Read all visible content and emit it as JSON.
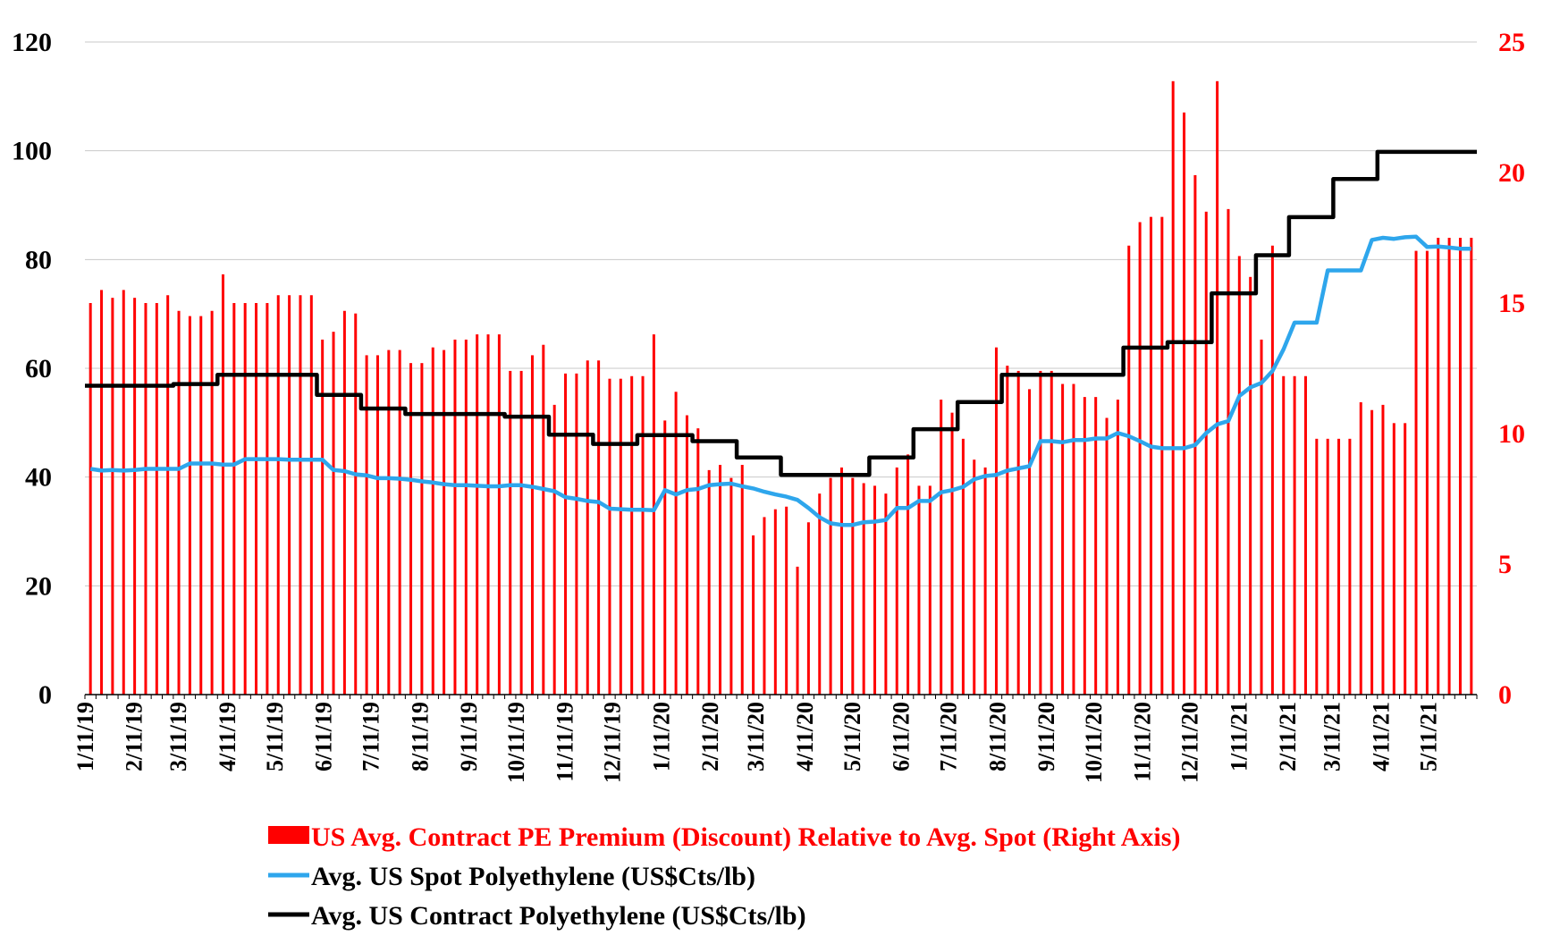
{
  "chart_data": {
    "type": "bar+line",
    "colors": {
      "bars": "#ff0000",
      "spot": "#2ea6ec",
      "contract": "#000000",
      "right_axis": "#ff0000",
      "grid": "#c8c8c8"
    },
    "left_axis": {
      "ylim": [
        0,
        120
      ],
      "ticks": [
        "0",
        "20",
        "40",
        "60",
        "80",
        "100",
        "120"
      ]
    },
    "right_axis": {
      "ylim": [
        0,
        25
      ],
      "ticks": [
        "0",
        "5",
        "10",
        "15",
        "20",
        "25"
      ]
    },
    "x_tick_labels": [
      "1/11/19",
      "2/11/19",
      "3/11/19",
      "4/11/19",
      "5/11/19",
      "6/11/19",
      "7/11/19",
      "8/11/19",
      "9/11/19",
      "10/11/19",
      "11/11/19",
      "12/11/19",
      "1/11/20",
      "2/11/20",
      "3/11/20",
      "4/11/20",
      "5/11/20",
      "6/11/20",
      "7/11/20",
      "8/11/20",
      "9/11/20",
      "10/11/20",
      "11/11/20",
      "12/11/20",
      "1/11/21",
      "2/11/21",
      "3/11/21",
      "4/11/21",
      "5/11/21"
    ],
    "x_tick_weeks": [
      0,
      4.43,
      8.43,
      12.86,
      17.14,
      21.57,
      25.86,
      30.29,
      34.71,
      39,
      43.43,
      47.71,
      52.14,
      56.57,
      60.71,
      65.14,
      69.43,
      73.86,
      78.14,
      82.57,
      87,
      91.29,
      95.71,
      100,
      104.43,
      108.86,
      112.86,
      117.29,
      121.57
    ],
    "weeks_total": 126,
    "legend": [
      {
        "label": "US Avg. Contract PE Premium (Discount) Relative to Avg. Spot (Right Axis)",
        "color": "#ff0000",
        "kind": "bar"
      },
      {
        "label": "Avg. US Spot Polyethylene (US$Cts/lb)",
        "color": "#2ea6ec",
        "kind": "line"
      },
      {
        "label": "Avg. US Contract Polyethylene (US$Cts/lb)",
        "color": "#000000",
        "kind": "line"
      }
    ],
    "series": [
      {
        "name": "US Avg. Contract PE Premium (Discount) Relative to Avg. Spot (Right Axis)",
        "axis": "right",
        "type": "bar",
        "values": [
          15.0,
          15.5,
          15.2,
          15.5,
          15.2,
          15.0,
          15.0,
          15.3,
          14.7,
          14.5,
          14.5,
          14.7,
          16.1,
          15.0,
          15.0,
          15.0,
          15.0,
          15.3,
          15.3,
          15.3,
          15.3,
          13.6,
          13.9,
          14.7,
          14.6,
          13.0,
          13.0,
          13.2,
          13.2,
          12.7,
          12.7,
          13.3,
          13.2,
          13.6,
          13.6,
          13.8,
          13.8,
          13.8,
          12.4,
          12.4,
          13.0,
          13.4,
          11.1,
          12.3,
          12.3,
          12.8,
          12.8,
          12.1,
          12.1,
          12.2,
          12.2,
          13.8,
          10.5,
          11.6,
          10.7,
          10.2,
          8.6,
          8.8,
          8.3,
          8.8,
          6.1,
          6.8,
          7.1,
          7.2,
          4.9,
          6.6,
          7.7,
          8.3,
          8.7,
          8.3,
          8.1,
          8.0,
          7.7,
          8.7,
          9.2,
          8.0,
          8.0,
          11.3,
          10.8,
          9.8,
          9.0,
          8.7,
          13.3,
          12.6,
          12.4,
          11.7,
          12.4,
          12.4,
          11.9,
          11.9,
          11.4,
          11.4,
          10.6,
          11.3,
          17.2,
          18.1,
          18.3,
          18.3,
          23.5,
          22.3,
          19.9,
          18.5,
          23.5,
          18.6,
          16.8,
          16.0,
          13.6,
          17.2,
          12.2,
          12.2,
          12.2,
          9.8,
          9.8,
          9.8,
          9.8,
          11.2,
          10.9,
          11.1,
          10.4,
          10.4,
          17.0,
          17.0,
          17.5,
          17.5,
          17.5,
          17.5
        ]
      },
      {
        "name": "Avg. US Spot Polyethylene (US$Cts/lb)",
        "axis": "left",
        "type": "line",
        "values": [
          41.5,
          41.2,
          41.3,
          41.2,
          41.3,
          41.5,
          41.5,
          41.5,
          41.5,
          42.5,
          42.5,
          42.5,
          42.3,
          42.3,
          43.3,
          43.3,
          43.3,
          43.3,
          43.2,
          43.2,
          43.2,
          43.2,
          41.3,
          41.1,
          40.5,
          40.3,
          39.8,
          39.8,
          39.7,
          39.5,
          39.2,
          39.0,
          38.7,
          38.5,
          38.5,
          38.4,
          38.3,
          38.3,
          38.5,
          38.5,
          38.2,
          37.8,
          37.4,
          36.3,
          36.0,
          35.6,
          35.4,
          34.2,
          34.1,
          34.0,
          34.0,
          33.9,
          37.6,
          36.8,
          37.6,
          37.8,
          38.5,
          38.7,
          38.8,
          38.3,
          37.9,
          37.3,
          36.8,
          36.4,
          35.8,
          34.3,
          32.6,
          31.5,
          31.2,
          31.2,
          31.7,
          31.8,
          32.1,
          34.3,
          34.3,
          35.6,
          35.6,
          37.2,
          37.6,
          38.2,
          39.6,
          40.2,
          40.4,
          41.2,
          41.6,
          42.0,
          46.6,
          46.6,
          46.4,
          46.8,
          46.8,
          47.1,
          47.1,
          48.1,
          47.5,
          46.6,
          45.6,
          45.3,
          45.3,
          45.3,
          45.9,
          48.1,
          49.7,
          50.3,
          54.9,
          56.5,
          57.3,
          59.5,
          63.5,
          68.4,
          68.4,
          68.4,
          78.0,
          78.0,
          78.0,
          78.0,
          83.6,
          84.0,
          83.8,
          84.1,
          84.2,
          82.3,
          82.4,
          82.2,
          82.0,
          82.0
        ]
      },
      {
        "name": "Avg. US Contract Polyethylene (US$Cts/lb)",
        "axis": "left",
        "type": "line",
        "steps": [
          [
            0,
            56.8
          ],
          [
            8,
            57.1
          ],
          [
            12,
            58.8
          ],
          [
            21,
            55.1
          ],
          [
            25,
            52.6
          ],
          [
            29,
            51.6
          ],
          [
            38,
            51.1
          ],
          [
            42,
            47.8
          ],
          [
            46,
            46.1
          ],
          [
            50,
            47.7
          ],
          [
            55,
            46.6
          ],
          [
            59,
            43.6
          ],
          [
            63,
            40.4
          ],
          [
            71,
            43.6
          ],
          [
            75,
            48.8
          ],
          [
            79,
            53.8
          ],
          [
            83,
            58.8
          ],
          [
            94,
            63.8
          ],
          [
            98,
            64.8
          ],
          [
            102,
            73.8
          ],
          [
            106,
            80.8
          ],
          [
            109,
            87.8
          ],
          [
            113,
            94.8
          ],
          [
            117,
            99.8
          ],
          [
            126,
            99.8
          ]
        ]
      }
    ]
  }
}
